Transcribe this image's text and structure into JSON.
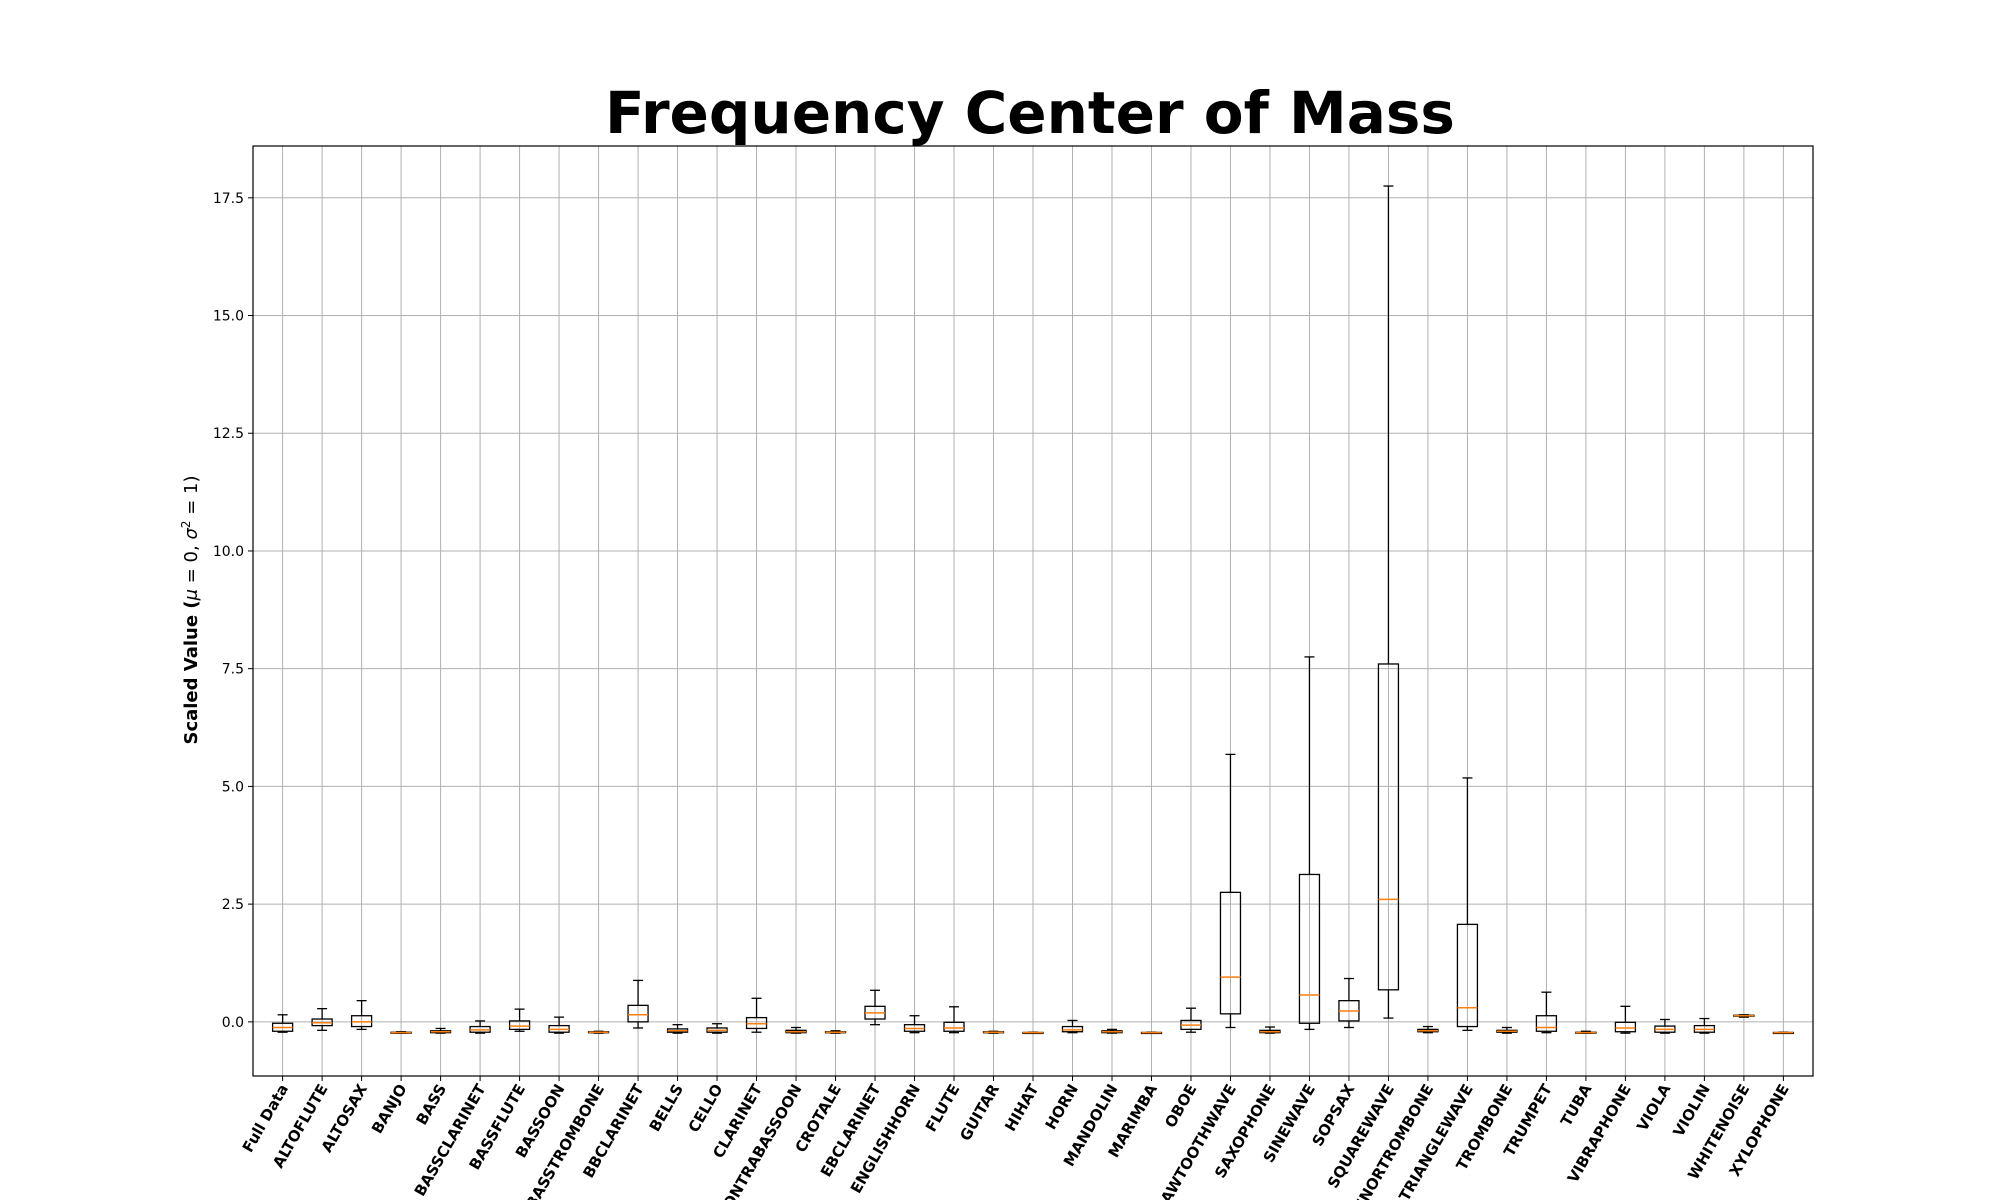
{
  "chart_data": {
    "type": "box",
    "title": "Frequency Center of Mass",
    "xlabel": "",
    "ylabel_prefix": "Scaled Value (",
    "ylabel_mu": "μ",
    "ylabel_mu_eq": " = 0, ",
    "ylabel_sigma": "σ",
    "ylabel_sup": "2",
    "ylabel_sigma_eq": " = 1)",
    "ylim": [
      -1.15,
      18.6
    ],
    "yticks": [
      0.0,
      2.5,
      5.0,
      7.5,
      10.0,
      12.5,
      15.0,
      17.5
    ],
    "ytick_labels": [
      "0.0",
      "2.5",
      "5.0",
      "7.5",
      "10.0",
      "12.5",
      "15.0",
      "17.5"
    ],
    "grid": true,
    "categories": [
      "Full Data",
      "ALTOFLUTE",
      "ALTOSAX",
      "BANJO",
      "BASS",
      "BASSCLARINET",
      "BASSFLUTE",
      "BASSOON",
      "BASSTROMBONE",
      "BBCLARINET",
      "BELLS",
      "CELLO",
      "CLARINET",
      "CONTRABASSOON",
      "CROTALE",
      "EBCLARINET",
      "ENGLISHHORN",
      "FLUTE",
      "GUITAR",
      "HIHAT",
      "HORN",
      "MANDOLIN",
      "MARIMBA",
      "OBOE",
      "SAWTOOTHWAVE",
      "SAXOPHONE",
      "SINEWAVE",
      "SOPSAX",
      "SQUAREWAVE",
      "TENORTROMBONE",
      "TRIANGLEWAVE",
      "TROMBONE",
      "TRUMPET",
      "TUBA",
      "VIBRAPHONE",
      "VIOLA",
      "VIOLIN",
      "WHITENOISE",
      "XYLOPHONE"
    ],
    "boxes": [
      {
        "whislo": -0.22,
        "q1": -0.2,
        "med": -0.12,
        "q3": -0.03,
        "whishi": 0.15
      },
      {
        "whislo": -0.18,
        "q1": -0.08,
        "med": -0.02,
        "q3": 0.06,
        "whishi": 0.28
      },
      {
        "whislo": -0.16,
        "q1": -0.1,
        "med": 0.0,
        "q3": 0.13,
        "whishi": 0.45
      },
      {
        "whislo": -0.24,
        "q1": -0.24,
        "med": -0.23,
        "q3": -0.22,
        "whishi": -0.21
      },
      {
        "whislo": -0.24,
        "q1": -0.23,
        "med": -0.21,
        "q3": -0.19,
        "whishi": -0.14
      },
      {
        "whislo": -0.24,
        "q1": -0.22,
        "med": -0.17,
        "q3": -0.1,
        "whishi": 0.02
      },
      {
        "whislo": -0.2,
        "q1": -0.16,
        "med": -0.09,
        "q3": 0.02,
        "whishi": 0.27
      },
      {
        "whislo": -0.24,
        "q1": -0.22,
        "med": -0.16,
        "q3": -0.08,
        "whishi": 0.1
      },
      {
        "whislo": -0.24,
        "q1": -0.23,
        "med": -0.22,
        "q3": -0.21,
        "whishi": -0.2
      },
      {
        "whislo": -0.13,
        "q1": 0.0,
        "med": 0.15,
        "q3": 0.35,
        "whishi": 0.88
      },
      {
        "whislo": -0.24,
        "q1": -0.22,
        "med": -0.19,
        "q3": -0.15,
        "whishi": -0.06
      },
      {
        "whislo": -0.24,
        "q1": -0.22,
        "med": -0.18,
        "q3": -0.13,
        "whishi": -0.04
      },
      {
        "whislo": -0.22,
        "q1": -0.14,
        "med": -0.04,
        "q3": 0.09,
        "whishi": 0.5
      },
      {
        "whislo": -0.24,
        "q1": -0.23,
        "med": -0.21,
        "q3": -0.18,
        "whishi": -0.12
      },
      {
        "whislo": -0.24,
        "q1": -0.23,
        "med": -0.22,
        "q3": -0.21,
        "whishi": -0.19
      },
      {
        "whislo": -0.06,
        "q1": 0.06,
        "med": 0.19,
        "q3": 0.33,
        "whishi": 0.67
      },
      {
        "whislo": -0.23,
        "q1": -0.2,
        "med": -0.14,
        "q3": -0.06,
        "whishi": 0.13
      },
      {
        "whislo": -0.23,
        "q1": -0.2,
        "med": -0.13,
        "q3": -0.01,
        "whishi": 0.32
      },
      {
        "whislo": -0.24,
        "q1": -0.23,
        "med": -0.22,
        "q3": -0.21,
        "whishi": -0.2
      },
      {
        "whislo": -0.24,
        "q1": -0.235,
        "med": -0.23,
        "q3": -0.225,
        "whishi": -0.22
      },
      {
        "whislo": -0.23,
        "q1": -0.21,
        "med": -0.17,
        "q3": -0.1,
        "whishi": 0.03
      },
      {
        "whislo": -0.24,
        "q1": -0.23,
        "med": -0.21,
        "q3": -0.19,
        "whishi": -0.16
      },
      {
        "whislo": -0.24,
        "q1": -0.235,
        "med": -0.23,
        "q3": -0.225,
        "whishi": -0.22
      },
      {
        "whislo": -0.22,
        "q1": -0.16,
        "med": -0.07,
        "q3": 0.03,
        "whishi": 0.29
      },
      {
        "whislo": -0.12,
        "q1": 0.17,
        "med": 0.95,
        "q3": 2.75,
        "whishi": 5.68
      },
      {
        "whislo": -0.24,
        "q1": -0.23,
        "med": -0.21,
        "q3": -0.18,
        "whishi": -0.11
      },
      {
        "whislo": -0.16,
        "q1": -0.03,
        "med": 0.57,
        "q3": 3.13,
        "whishi": 7.75
      },
      {
        "whislo": -0.12,
        "q1": 0.02,
        "med": 0.23,
        "q3": 0.45,
        "whishi": 0.92
      },
      {
        "whislo": 0.08,
        "q1": 0.68,
        "med": 2.6,
        "q3": 7.6,
        "whishi": 17.75
      },
      {
        "whislo": -0.23,
        "q1": -0.21,
        "med": -0.19,
        "q3": -0.16,
        "whishi": -0.1
      },
      {
        "whislo": -0.18,
        "q1": -0.1,
        "med": 0.3,
        "q3": 2.07,
        "whishi": 5.18
      },
      {
        "whislo": -0.24,
        "q1": -0.22,
        "med": -0.2,
        "q3": -0.18,
        "whishi": -0.12
      },
      {
        "whislo": -0.23,
        "q1": -0.2,
        "med": -0.12,
        "q3": 0.13,
        "whishi": 0.63
      },
      {
        "whislo": -0.24,
        "q1": -0.235,
        "med": -0.23,
        "q3": -0.22,
        "whishi": -0.2
      },
      {
        "whislo": -0.24,
        "q1": -0.21,
        "med": -0.13,
        "q3": -0.01,
        "whishi": 0.33
      },
      {
        "whislo": -0.24,
        "q1": -0.22,
        "med": -0.16,
        "q3": -0.09,
        "whishi": 0.05
      },
      {
        "whislo": -0.24,
        "q1": -0.22,
        "med": -0.16,
        "q3": -0.08,
        "whishi": 0.07
      },
      {
        "whislo": 0.1,
        "q1": 0.12,
        "med": 0.13,
        "q3": 0.14,
        "whishi": 0.15
      },
      {
        "whislo": -0.24,
        "q1": -0.235,
        "med": -0.23,
        "q3": -0.225,
        "whishi": -0.22
      }
    ],
    "colors": {
      "box": "#000000",
      "median": "#ff7f0e",
      "grid": "#b0b0b0"
    }
  }
}
